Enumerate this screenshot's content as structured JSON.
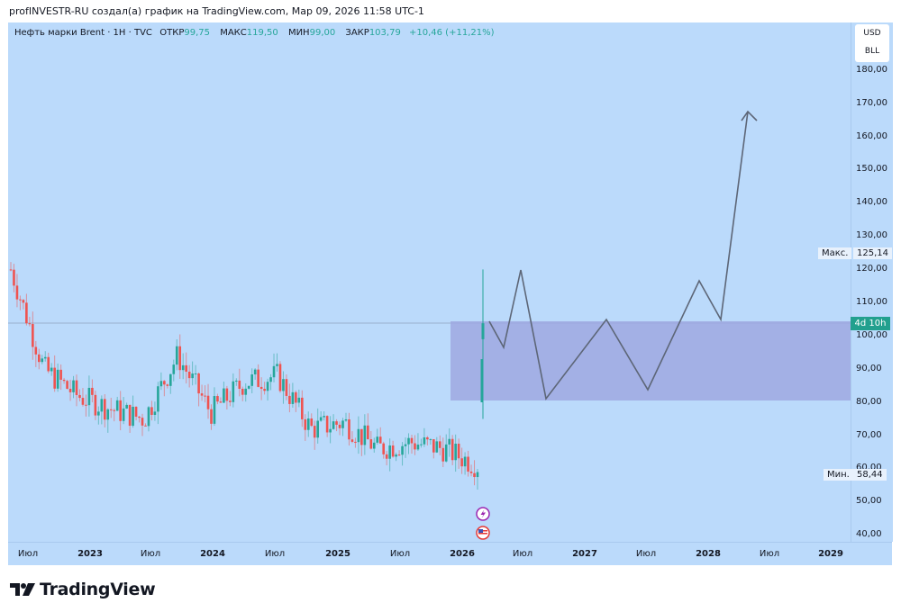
{
  "header": {
    "credit": "profINVESTR-RU создал(а) график на TradingView.com, Мар 09, 2026 11:58 UTC-1"
  },
  "legend": {
    "symbol": "Нефть марки Brent · 1H · TVC",
    "open_label": "ОТКР",
    "open": "99,75",
    "high_label": "МАКС",
    "high": "119,50",
    "low_label": "МИН",
    "low": "99,00",
    "close_label": "ЗАКР",
    "close": "103,79",
    "change": "+10,46 (+11,21%)"
  },
  "price_axis": {
    "currency": "USD",
    "unit": "BLL",
    "ticks": [
      "180,00",
      "170,00",
      "160,00",
      "150,00",
      "140,00",
      "130,00",
      "120,00",
      "110,00",
      "100,00",
      "90,00",
      "80,00",
      "70,00",
      "60,00",
      "50,00",
      "40,00"
    ]
  },
  "time_axis": {
    "ticks": [
      "Июл",
      "2023",
      "Июл",
      "2024",
      "Июл",
      "2025",
      "Июл",
      "2026",
      "Июл",
      "2027",
      "Июл",
      "2028",
      "Июл",
      "2029"
    ]
  },
  "markers": {
    "max_label": "Макс.",
    "max_value": "125,14",
    "min_label": "Мин.",
    "min_value": "58,44",
    "countdown": "4d 10h"
  },
  "colors": {
    "up": "#26a69a",
    "down": "#ef5350",
    "background": "#bbdafb",
    "zone": "#9fa8e0",
    "path": "#5d6677"
  },
  "branding": {
    "logo_text": "TradingView"
  },
  "chart_data": {
    "type": "candlestick",
    "title": "Нефть марки Brent · 1H · TVC",
    "ylabel": "USD / BLL",
    "ylim": [
      38,
      185
    ],
    "x": [
      "2022-06",
      "2022-09",
      "2022-12",
      "2023-03",
      "2023-06",
      "2023-09",
      "2023-12",
      "2024-03",
      "2024-06",
      "2024-09",
      "2024-12",
      "2025-03",
      "2025-06",
      "2025-09",
      "2025-12",
      "2026-03"
    ],
    "close_approx": [
      120,
      90,
      82,
      78,
      75,
      94,
      77,
      86,
      88,
      72,
      74,
      66,
      68,
      66,
      61,
      104
    ],
    "period_high": 125.14,
    "period_low": 58.44,
    "zone": {
      "from": "2026-03",
      "to": "2029-04",
      "low": 80,
      "high": 104
    },
    "projection_path": [
      {
        "t": "2026-03",
        "p": 104
      },
      {
        "t": "2026-05",
        "p": 96
      },
      {
        "t": "2026-07",
        "p": 120
      },
      {
        "t": "2026-11",
        "p": 80
      },
      {
        "t": "2027-07",
        "p": 104
      },
      {
        "t": "2028-01",
        "p": 83
      },
      {
        "t": "2028-07",
        "p": 117
      },
      {
        "t": "2028-10",
        "p": 104
      },
      {
        "t": "2029-03",
        "p": 167
      }
    ]
  }
}
